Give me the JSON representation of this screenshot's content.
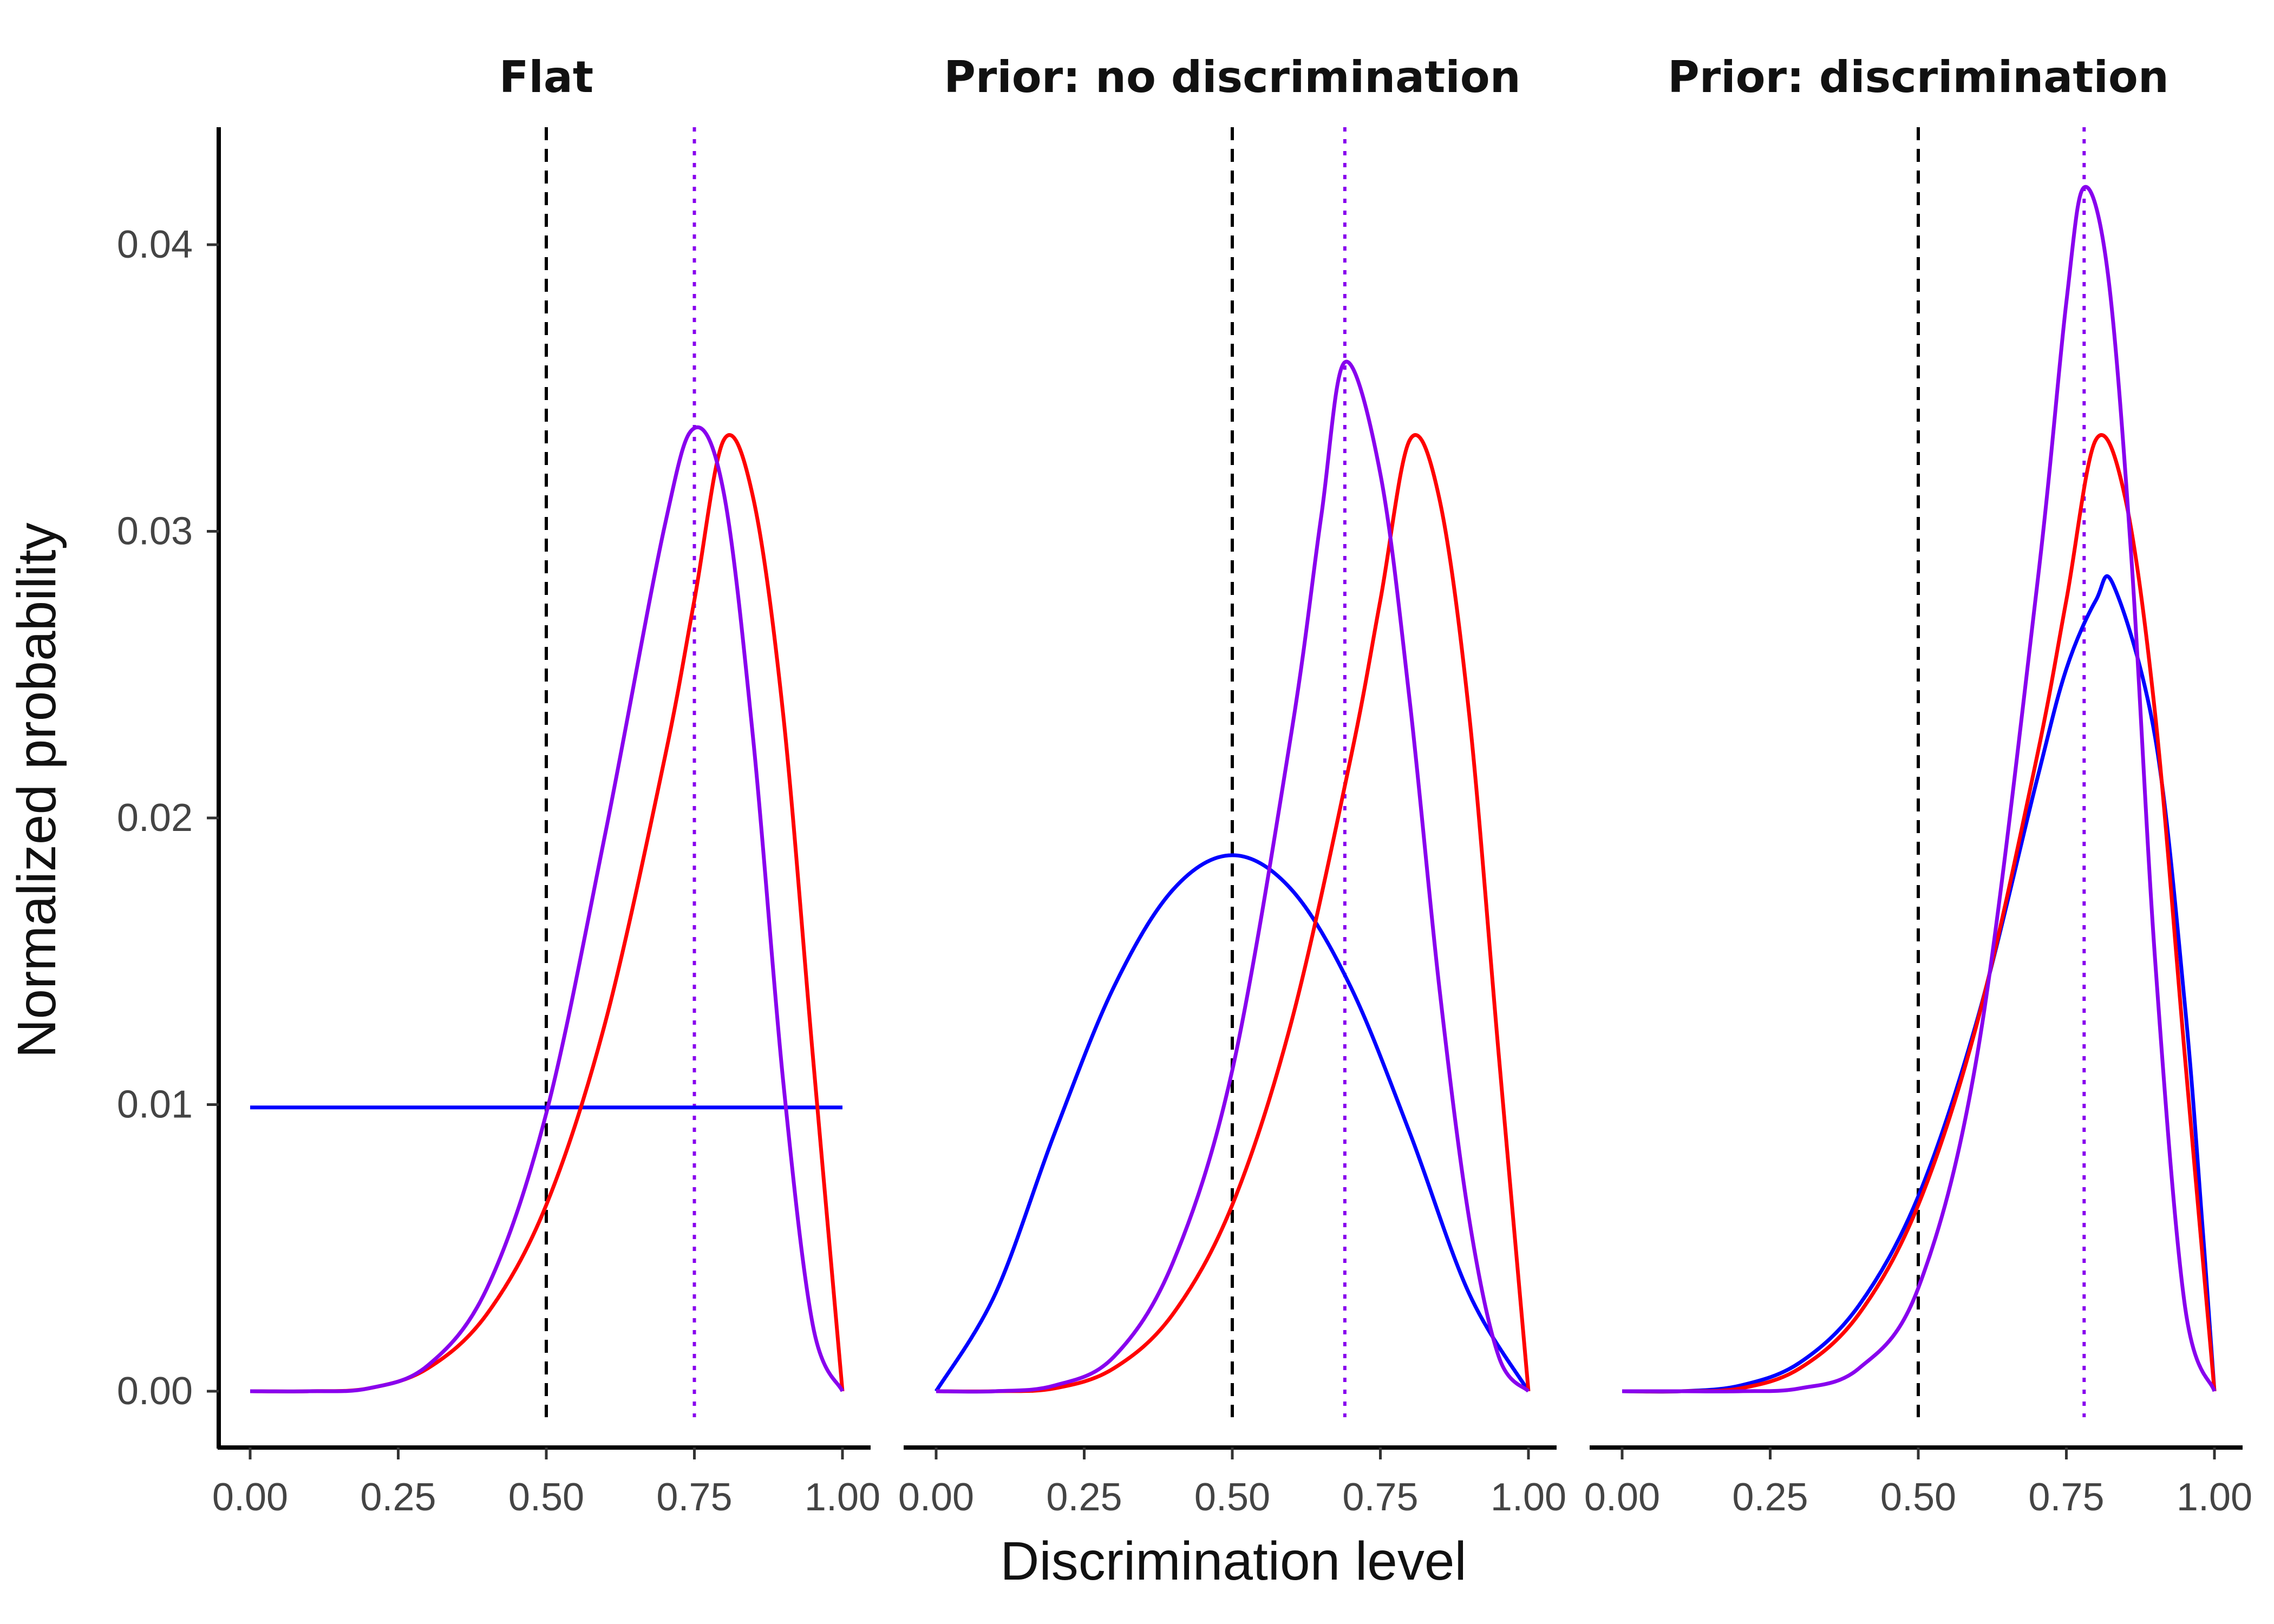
{
  "chart_data": {
    "type": "line",
    "ylabel": "Normalized probability",
    "xlabel": "Discrimination level",
    "xlim": [
      0,
      1
    ],
    "ylim": [
      0,
      0.044
    ],
    "x_ticks": [
      "0.00",
      "0.25",
      "0.50",
      "0.75",
      "1.00"
    ],
    "y_ticks": [
      "0.00",
      "0.01",
      "0.02",
      "0.03",
      "0.04"
    ],
    "grid": false,
    "legend": "none",
    "colors": {
      "prior": "#0000ff",
      "likelihood": "#ff0000",
      "posterior": "#8800ee",
      "reference": "#000000"
    },
    "panels": [
      {
        "title": "Flat",
        "reference_x": 0.5,
        "posterior_mean_x": 0.75,
        "series": [
          {
            "color": "prior",
            "x": [
              0,
              1
            ],
            "y": [
              0.0099,
              0.0099
            ]
          },
          {
            "color": "likelihood",
            "x": [
              0,
              0.1,
              0.2,
              0.3,
              0.4,
              0.5,
              0.6,
              0.7,
              0.75,
              0.8,
              0.85,
              0.9,
              0.95,
              1.0
            ],
            "y": [
              0,
              0,
              0.0001,
              0.0008,
              0.0027,
              0.0065,
              0.0129,
              0.0221,
              0.0276,
              0.0332,
              0.0311,
              0.0236,
              0.0117,
              0
            ]
          },
          {
            "color": "posterior",
            "x": [
              0,
              0.1,
              0.2,
              0.3,
              0.4,
              0.5,
              0.6,
              0.7,
              0.75,
              0.8,
              0.85,
              0.9,
              0.95,
              1.0
            ],
            "y": [
              0,
              0,
              0.0001,
              0.0009,
              0.0036,
              0.0097,
              0.0195,
              0.0302,
              0.0336,
              0.0313,
              0.0226,
              0.0108,
              0.0023,
              0
            ]
          }
        ]
      },
      {
        "title": "Prior: no discrimination",
        "reference_x": 0.5,
        "posterior_mean_x": 0.69,
        "series": [
          {
            "color": "prior",
            "x": [
              0,
              0.1,
              0.2,
              0.3,
              0.4,
              0.5,
              0.6,
              0.7,
              0.8,
              0.9,
              1.0
            ],
            "y": [
              0,
              0.0034,
              0.009,
              0.0141,
              0.0175,
              0.0187,
              0.0175,
              0.0141,
              0.009,
              0.0034,
              0
            ]
          },
          {
            "color": "likelihood",
            "x": [
              0,
              0.1,
              0.2,
              0.3,
              0.4,
              0.5,
              0.6,
              0.7,
              0.75,
              0.8,
              0.85,
              0.9,
              0.95,
              1.0
            ],
            "y": [
              0,
              0,
              0.0001,
              0.0008,
              0.0027,
              0.0065,
              0.0129,
              0.0221,
              0.0276,
              0.0332,
              0.0311,
              0.0236,
              0.0117,
              0
            ]
          },
          {
            "color": "posterior",
            "x": [
              0,
              0.1,
              0.2,
              0.3,
              0.4,
              0.5,
              0.6,
              0.65,
              0.69,
              0.75,
              0.8,
              0.85,
              0.9,
              0.95,
              1.0
            ],
            "y": [
              0,
              0,
              0.0002,
              0.0012,
              0.0045,
              0.0112,
              0.023,
              0.0305,
              0.0359,
              0.032,
              0.024,
              0.014,
              0.006,
              0.0012,
              0
            ]
          }
        ]
      },
      {
        "title": "Prior: discrimination",
        "reference_x": 0.5,
        "posterior_mean_x": 0.78,
        "series": [
          {
            "color": "prior",
            "x": [
              0,
              0.1,
              0.2,
              0.3,
              0.4,
              0.5,
              0.6,
              0.7,
              0.75,
              0.8,
              0.83,
              0.9,
              0.95,
              0.98,
              1.0
            ],
            "y": [
              0,
              0,
              0.0002,
              0.001,
              0.003,
              0.0068,
              0.013,
              0.0213,
              0.0252,
              0.0276,
              0.0281,
              0.0228,
              0.0135,
              0.0057,
              0
            ]
          },
          {
            "color": "likelihood",
            "x": [
              0,
              0.1,
              0.2,
              0.3,
              0.4,
              0.5,
              0.6,
              0.7,
              0.75,
              0.8,
              0.85,
              0.9,
              0.95,
              1.0
            ],
            "y": [
              0,
              0,
              0.0001,
              0.0008,
              0.0027,
              0.0065,
              0.0129,
              0.0221,
              0.0276,
              0.0332,
              0.0311,
              0.0236,
              0.0117,
              0
            ]
          },
          {
            "color": "posterior",
            "x": [
              0,
              0.1,
              0.2,
              0.3,
              0.4,
              0.5,
              0.6,
              0.7,
              0.75,
              0.78,
              0.82,
              0.86,
              0.9,
              0.95,
              1.0
            ],
            "y": [
              0,
              0,
              0,
              0.0001,
              0.0008,
              0.0036,
              0.0118,
              0.028,
              0.038,
              0.042,
              0.039,
              0.029,
              0.015,
              0.003,
              0
            ]
          }
        ]
      }
    ]
  }
}
